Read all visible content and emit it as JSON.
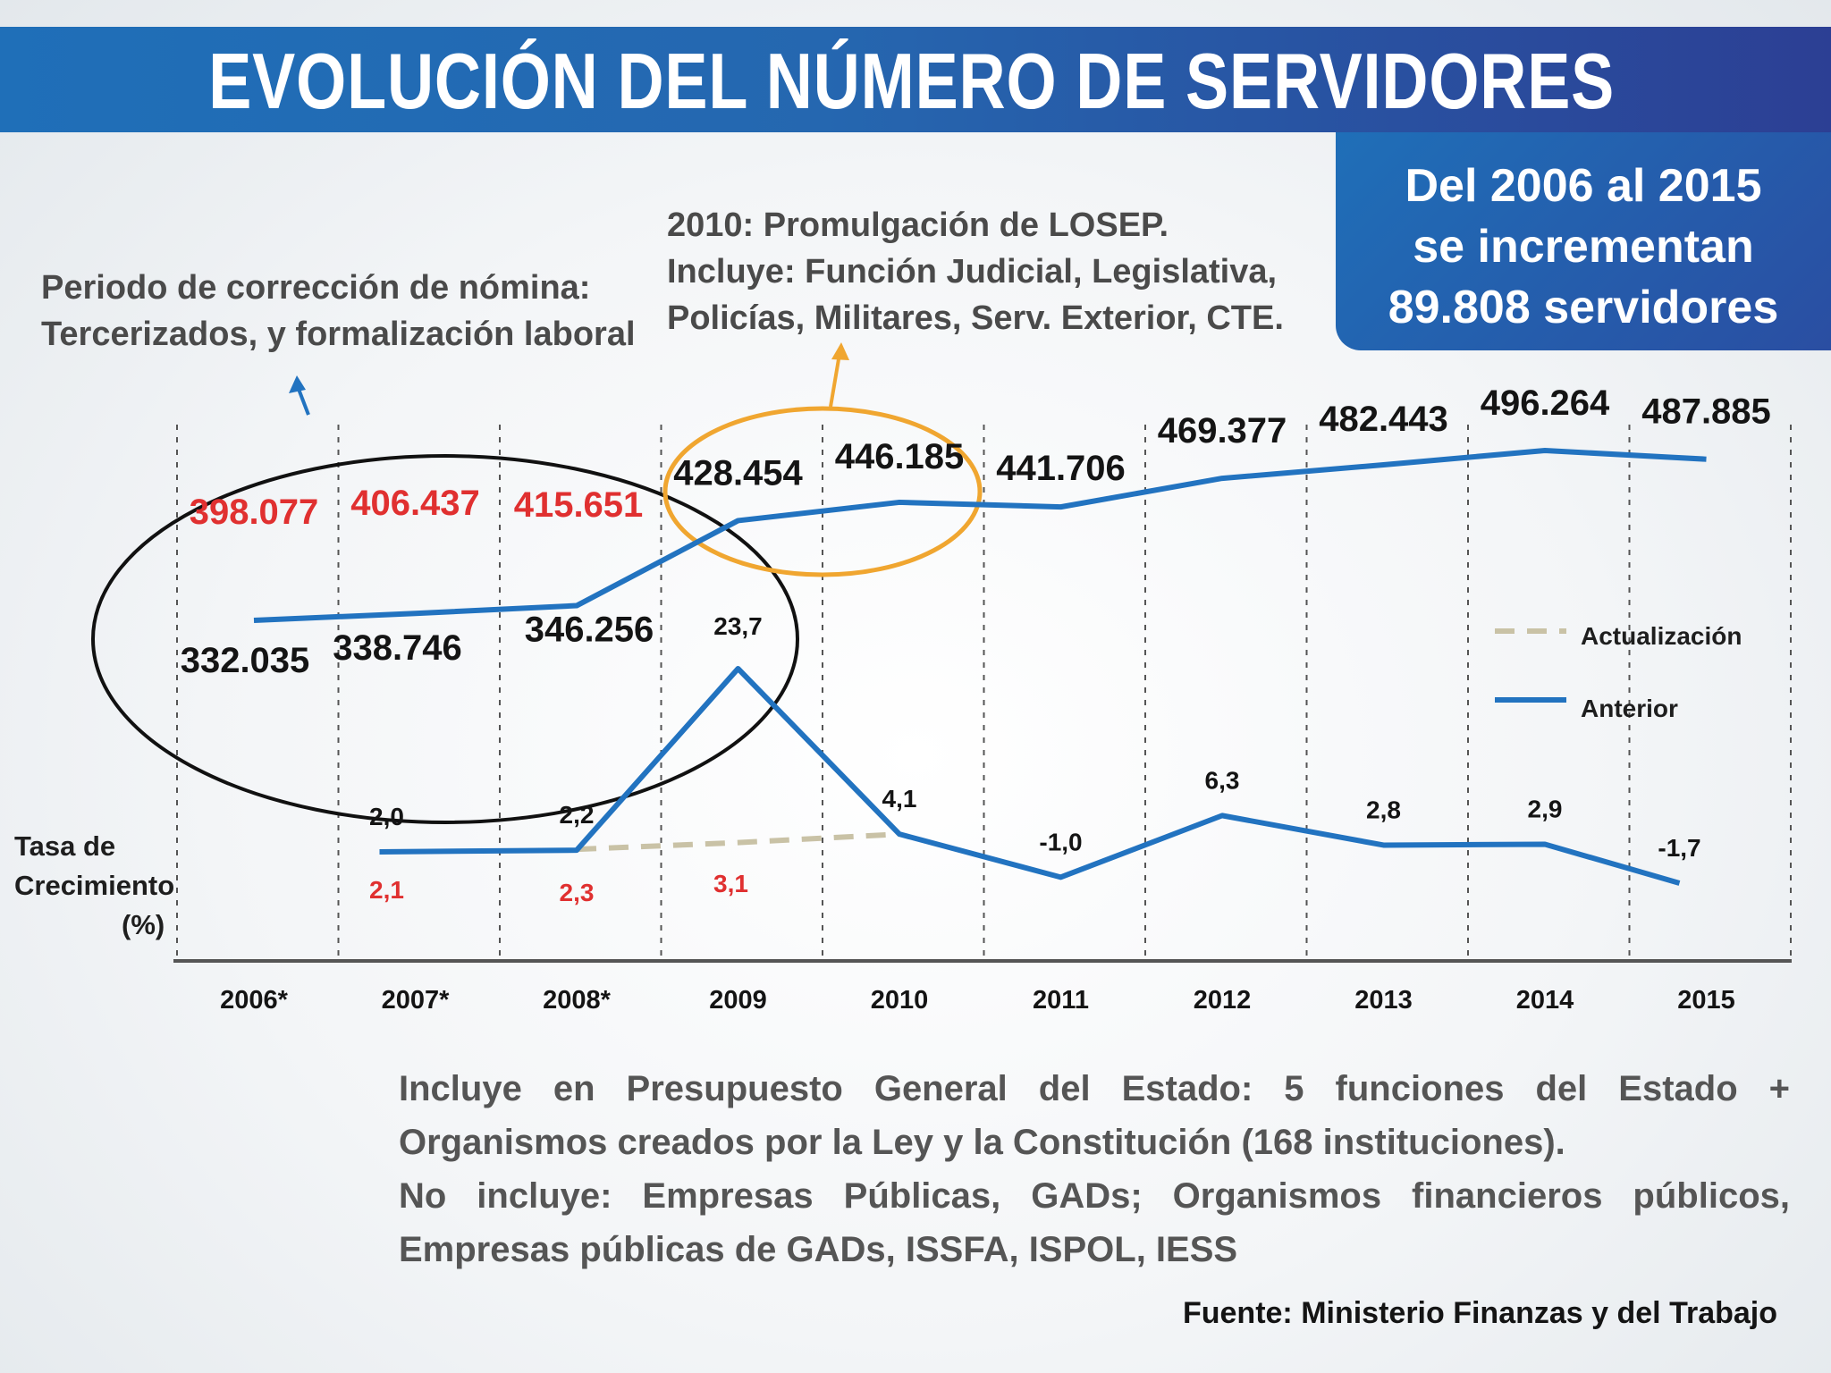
{
  "title": "EVOLUCIÓN DEL NÚMERO DE SERVIDORES",
  "summary": {
    "line1": "Del 2006  al 2015",
    "line2": "se incrementan",
    "line3": "89.808 servidores"
  },
  "annotations": {
    "correction_line1": "Periodo de corrección de nómina:",
    "correction_line2": "Tercerizados, y formalización laboral",
    "losep_line1": "2010: Promulgación de LOSEP.",
    "losep_line2": "Incluye: Función Judicial, Legislativa,",
    "losep_line3": "Policías, Militares, Serv. Exterior, CTE."
  },
  "colors": {
    "series_blue": "#2273c0",
    "update_dash": "#c9c2a6",
    "red": "#e03030",
    "black_ellipse": "#111111",
    "orange_ellipse": "#f0a630"
  },
  "chart_data": {
    "type": "line",
    "categories": [
      "2006*",
      "2007*",
      "2008*",
      "2009",
      "2010",
      "2011",
      "2012",
      "2013",
      "2014",
      "2015"
    ],
    "servers": {
      "name": "Número de servidores",
      "values": [
        332035,
        338746,
        346256,
        428454,
        446185,
        441706,
        469377,
        482443,
        496264,
        487885
      ],
      "labels": [
        "332.035",
        "338.746",
        "346.256",
        "428.454",
        "446.185",
        "441.706",
        "469.377",
        "482.443",
        "496.264",
        "487.885"
      ]
    },
    "servers_updated": {
      "name": "Actualización",
      "values": [
        398077,
        406437,
        415651
      ],
      "labels": [
        "398.077",
        "406.437",
        "415.651"
      ]
    },
    "growth_rate": {
      "label_line1": "Tasa de Crecimiento",
      "label_line2": "(%)",
      "anterior": {
        "name": "Anterior",
        "values": [
          null,
          2.0,
          2.2,
          23.7,
          4.1,
          -1.0,
          6.3,
          2.8,
          2.9,
          -1.7
        ],
        "labels": [
          "",
          "2,0",
          "2,2",
          "23,7",
          "4,1",
          "-1,0",
          "6,3",
          "2,8",
          "2,9",
          "-1,7"
        ]
      },
      "actualizacion": {
        "name": "Actualización",
        "values": [
          null,
          2.1,
          2.3,
          3.1,
          4.1
        ],
        "labels": [
          "",
          "2,1",
          "2,3",
          "3,1",
          ""
        ]
      }
    },
    "legend": [
      "Actualización",
      "Anterior"
    ],
    "legend_position": "right"
  },
  "footnote": {
    "line1": "Incluye en Presupuesto General del Estado: 5 funciones del Estado + Organismos creados por la Ley y la Constitución (168 instituciones).",
    "line2": "No incluye: Empresas Públicas, GADs; Organismos financieros públicos, Empresas públicas de GADs, ISSFA, ISPOL, IESS"
  },
  "source": "Fuente: Ministerio Finanzas y del Trabajo"
}
